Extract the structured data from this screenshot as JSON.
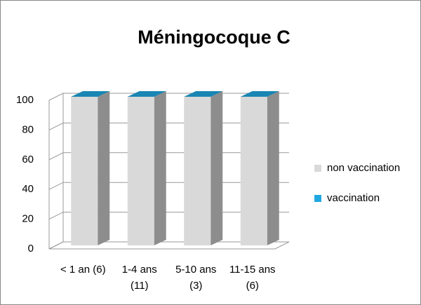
{
  "chart_data": {
    "type": "bar3d_stacked",
    "title": "Méningocoque C",
    "categories": [
      [
        "< 1 an (6)"
      ],
      [
        "1-4 ans",
        "(11)"
      ],
      [
        "5-10 ans",
        "(3)"
      ],
      [
        "11-15 ans",
        "(6)"
      ]
    ],
    "series": [
      {
        "name": "non vaccination",
        "color": "#d9d9d9",
        "values": [
          100,
          100,
          100,
          100
        ]
      },
      {
        "name": "vaccination",
        "color": "#1fa8e0",
        "values": [
          0,
          0,
          0,
          0
        ]
      }
    ],
    "ylim": [
      0,
      100
    ],
    "yticks": [
      0,
      20,
      40,
      60,
      80,
      100
    ],
    "grid": true,
    "legend": "right"
  }
}
